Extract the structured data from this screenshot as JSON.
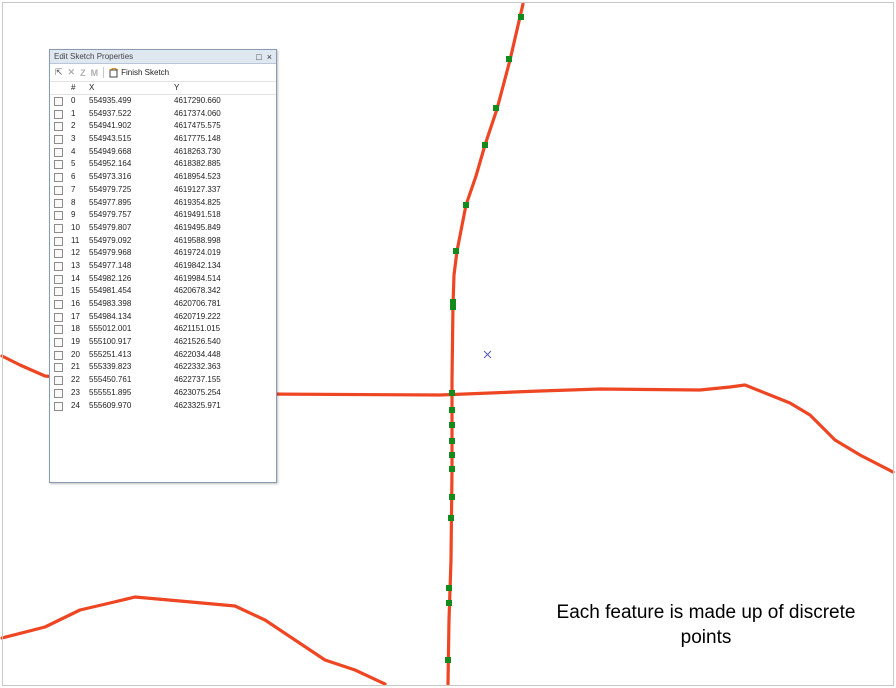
{
  "panel": {
    "title": "Edit Sketch Properties",
    "toolbar": {
      "finish_label": "Finish Sketch"
    },
    "columns": {
      "index": "#",
      "x": "X",
      "y": "Y"
    },
    "rows": [
      {
        "i": "0",
        "x": "554935.499",
        "y": "4617290.660"
      },
      {
        "i": "1",
        "x": "554937.522",
        "y": "4617374.060"
      },
      {
        "i": "2",
        "x": "554941.902",
        "y": "4617475.575"
      },
      {
        "i": "3",
        "x": "554943.515",
        "y": "4617775.148"
      },
      {
        "i": "4",
        "x": "554949.668",
        "y": "4618263.730"
      },
      {
        "i": "5",
        "x": "554952.164",
        "y": "4618382.885"
      },
      {
        "i": "6",
        "x": "554973.316",
        "y": "4618954.523"
      },
      {
        "i": "7",
        "x": "554979.725",
        "y": "4619127.337"
      },
      {
        "i": "8",
        "x": "554977.895",
        "y": "4619354.825"
      },
      {
        "i": "9",
        "x": "554979.757",
        "y": "4619491.518"
      },
      {
        "i": "10",
        "x": "554979.807",
        "y": "4619495.849"
      },
      {
        "i": "11",
        "x": "554979.092",
        "y": "4619588.998"
      },
      {
        "i": "12",
        "x": "554979.968",
        "y": "4619724.019"
      },
      {
        "i": "13",
        "x": "554977.148",
        "y": "4619842.134"
      },
      {
        "i": "14",
        "x": "554982.126",
        "y": "4619984.514"
      },
      {
        "i": "15",
        "x": "554981.454",
        "y": "4620678.342"
      },
      {
        "i": "16",
        "x": "554983.398",
        "y": "4620706.781"
      },
      {
        "i": "17",
        "x": "554984.134",
        "y": "4620719.222"
      },
      {
        "i": "18",
        "x": "555012.001",
        "y": "4621151.015"
      },
      {
        "i": "19",
        "x": "555100.917",
        "y": "4621526.540"
      },
      {
        "i": "20",
        "x": "555251.413",
        "y": "4622034.448"
      },
      {
        "i": "21",
        "x": "555339.823",
        "y": "4622332.363"
      },
      {
        "i": "22",
        "x": "555450.761",
        "y": "4622737.155"
      },
      {
        "i": "23",
        "x": "555551.895",
        "y": "4623075.254"
      },
      {
        "i": "24",
        "x": "555609.970",
        "y": "4623325.971"
      }
    ]
  },
  "caption": {
    "line1": "Each feature is made up of discrete",
    "line2": "points"
  },
  "colors": {
    "road": "#ee4523",
    "vertex": "#148a1c",
    "cursor": "#5a5ab8"
  }
}
